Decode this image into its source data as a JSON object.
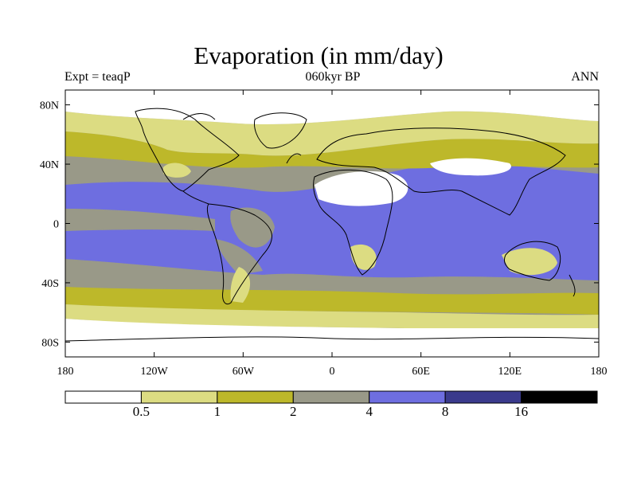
{
  "title": "Evaporation (in mm/day)",
  "left_string": "Expt = teaqP",
  "center_string": "060kyr BP",
  "right_string": "ANN",
  "lat_ticks": [
    {
      "lat": 80,
      "label": "80N"
    },
    {
      "lat": 40,
      "label": "40N"
    },
    {
      "lat": 0,
      "label": "0"
    },
    {
      "lat": -40,
      "label": "40S"
    },
    {
      "lat": -80,
      "label": "80S"
    }
  ],
  "lon_ticks": [
    {
      "lon": 180,
      "label": "180"
    },
    {
      "lon": 240,
      "label": "120W"
    },
    {
      "lon": 300,
      "label": "60W"
    },
    {
      "lon": 360,
      "label": "0"
    },
    {
      "lon": 420,
      "label": "60E"
    },
    {
      "lon": 480,
      "label": "120E"
    },
    {
      "lon": 540,
      "label": "180"
    }
  ],
  "colorbar": {
    "labels": [
      "0.5",
      "1",
      "2",
      "4",
      "8",
      "16"
    ],
    "colors": [
      "#ffffff",
      "#dcdc82",
      "#bdb82a",
      "#999988",
      "#6e6ee0",
      "#3a3a8c",
      "#000000"
    ]
  },
  "colors": {
    "land_outline": "#000000",
    "ocean_high": "#6e6ee0",
    "ocean_mid": "#999988",
    "midlat": "#bdb82a",
    "low": "#dcdc82",
    "very_low": "#ffffff"
  }
}
